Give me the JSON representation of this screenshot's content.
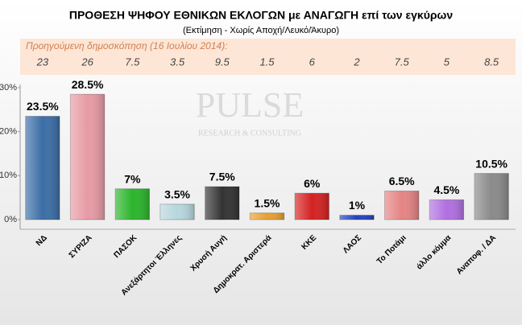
{
  "chart_data": {
    "type": "bar",
    "title": "ΠΡΟΘΕΣΗ ΨΗΦΟΥ ΕΘΝΙΚΩΝ ΕΚΛΟΓΩΝ με ΑΝΑΓΩΓΗ επί των εγκύρων",
    "subtitle": "(Εκτίμηση  -  Χωρίς Αποχή/Λευκό/Άκυρο)",
    "watermark": "PULSE",
    "watermark_sub": "RESEARCH & CONSULTING",
    "previous_label": "Προηγούμενη δημοσκόπηση  (16 Ιουλίου 2014):",
    "previous_values": [
      23,
      26,
      7.5,
      3.5,
      9.5,
      1.5,
      6,
      2,
      7.5,
      5,
      8.5
    ],
    "categories": [
      "ΝΔ",
      "ΣΥΡΙΖΑ",
      "ΠΑΣΟΚ",
      "Ανεξάρτητοι Έλληνες",
      "Χρυσή Αυγή",
      "Δημοκρατ. Αριστερά",
      "ΚΚΕ",
      "ΛΑΟΣ",
      "Το Ποτάμι",
      "άλλο κόμμα",
      "Αναποφ. / ΔΑ"
    ],
    "values": [
      23.5,
      28.5,
      7,
      3.5,
      7.5,
      1.5,
      6,
      1,
      6.5,
      4.5,
      10.5
    ],
    "value_labels": [
      "23.5%",
      "28.5%",
      "7%",
      "3.5%",
      "7.5%",
      "1.5%",
      "6%",
      "1%",
      "6.5%",
      "4.5%",
      "10.5%"
    ],
    "colors": [
      "#3b6ea6",
      "#e79aa4",
      "#2cb52c",
      "#b6d6de",
      "#333333",
      "#e8a030",
      "#d42222",
      "#2342c2",
      "#e58484",
      "#b070e0",
      "#8a8a8a"
    ],
    "ylim": [
      0,
      30
    ],
    "yticks": [
      {
        "value": 0,
        "label": "0%"
      },
      {
        "value": 10,
        "label": "10%"
      },
      {
        "value": 20,
        "label": "20%"
      },
      {
        "value": 30,
        "label": "30%"
      }
    ],
    "grid": false
  }
}
